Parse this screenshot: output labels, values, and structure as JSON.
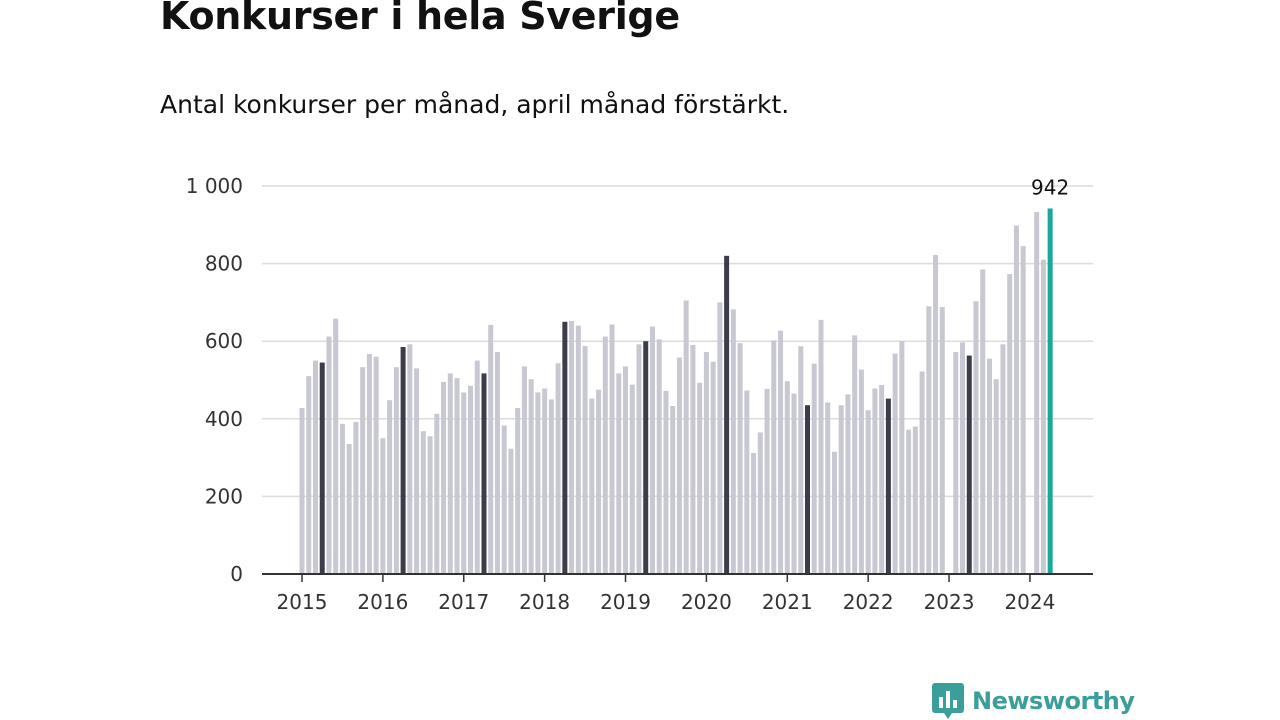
{
  "title": "Konkurser i hela Sverige",
  "subtitle": "Antal konkurser per månad, april månad förstärkt.",
  "brand": {
    "name": "Newsworthy",
    "icon": "newsworthy-logo-icon",
    "color": "#3a9e9a"
  },
  "colors": {
    "regular": "#c8c8d2",
    "april": "#3c3c4b",
    "latest": "#1aa79c",
    "grid": "#dcdcdc",
    "axis": "#333333"
  },
  "chart_data": {
    "type": "bar",
    "x_start": "2015-01",
    "ylim": [
      0,
      1000
    ],
    "yticks": [
      0,
      200,
      400,
      600,
      800,
      1000
    ],
    "ytick_labels": [
      "0",
      "200",
      "400",
      "600",
      "800",
      "1 000"
    ],
    "xtick_labels": [
      "2015",
      "2016",
      "2017",
      "2018",
      "2019",
      "2020",
      "2021",
      "2022",
      "2023",
      "2024"
    ],
    "grid": true,
    "highlight": "april",
    "annotation": {
      "month": "2024-04",
      "text": "942"
    },
    "values": [
      428,
      510,
      550,
      545,
      612,
      658,
      387,
      335,
      392,
      533,
      567,
      560,
      350,
      448,
      533,
      585,
      592,
      530,
      368,
      355,
      413,
      495,
      517,
      505,
      468,
      485,
      550,
      517,
      642,
      572,
      383,
      323,
      428,
      535,
      502,
      468,
      478,
      450,
      543,
      650,
      652,
      640,
      588,
      452,
      475,
      612,
      643,
      517,
      535,
      488,
      592,
      600,
      638,
      605,
      472,
      433,
      558,
      705,
      590,
      493,
      572,
      547,
      700,
      820,
      682,
      595,
      473,
      312,
      365,
      477,
      602,
      627,
      497,
      465,
      587,
      435,
      542,
      655,
      442,
      315,
      435,
      463,
      615,
      527,
      422,
      478,
      487,
      452,
      568,
      600,
      372,
      380,
      522,
      690,
      822,
      688,
      0,
      572,
      597,
      563,
      703,
      785,
      555,
      502,
      592,
      773,
      898,
      845,
      0,
      933,
      810,
      942
    ]
  }
}
